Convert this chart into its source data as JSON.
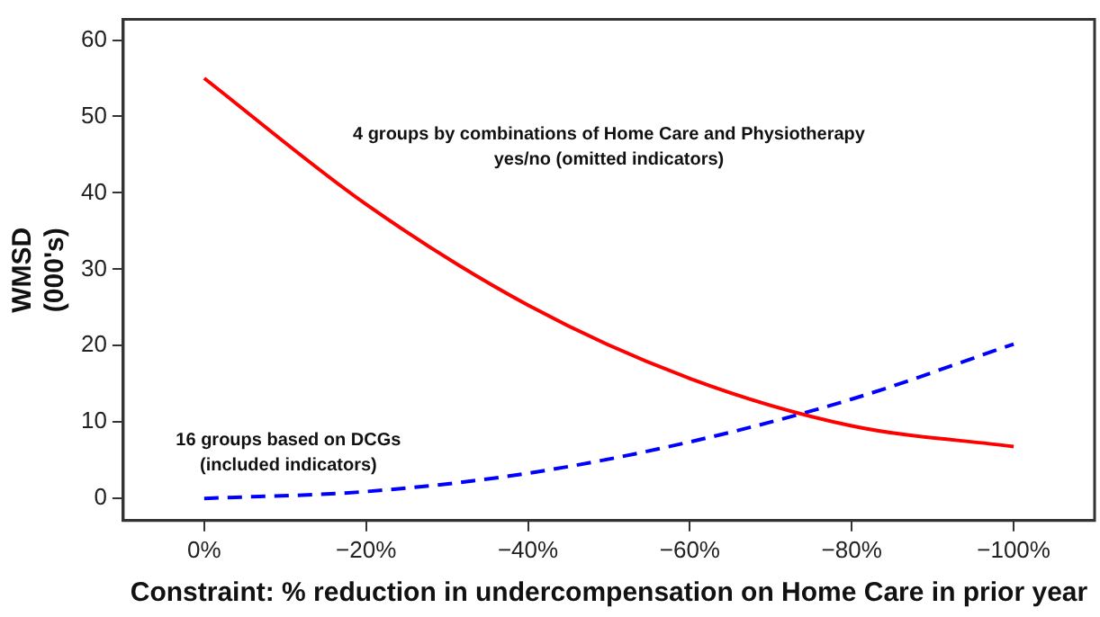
{
  "chart_data": {
    "type": "line",
    "xlabel": "Constraint: % reduction in undercompensation on Home Care in prior year",
    "ylabel": "WMSD\n(000's)",
    "categories": [
      "0%",
      "−20%",
      "−40%",
      "−60%",
      "−80%",
      "−100%"
    ],
    "series": [
      {
        "name": "4 groups by combinations of Home Care and Physiotherapy\nyes/no (omitted indicators)",
        "color": "#ff0000",
        "line_style": "solid",
        "values": [
          55,
          38.5,
          25.3,
          15.7,
          9.5,
          6.8
        ]
      },
      {
        "name": "16 groups based on DCGs\n(included indicators)",
        "color": "#0000ff",
        "line_style": "dashed",
        "values": [
          0,
          0.9,
          3.3,
          7.4,
          13,
          20.2
        ]
      }
    ],
    "ylim": [
      -2.9,
      62.7
    ],
    "yticks": [
      0,
      10,
      20,
      30,
      40,
      50,
      60
    ],
    "grid": false,
    "legend": false,
    "marker": "none"
  }
}
